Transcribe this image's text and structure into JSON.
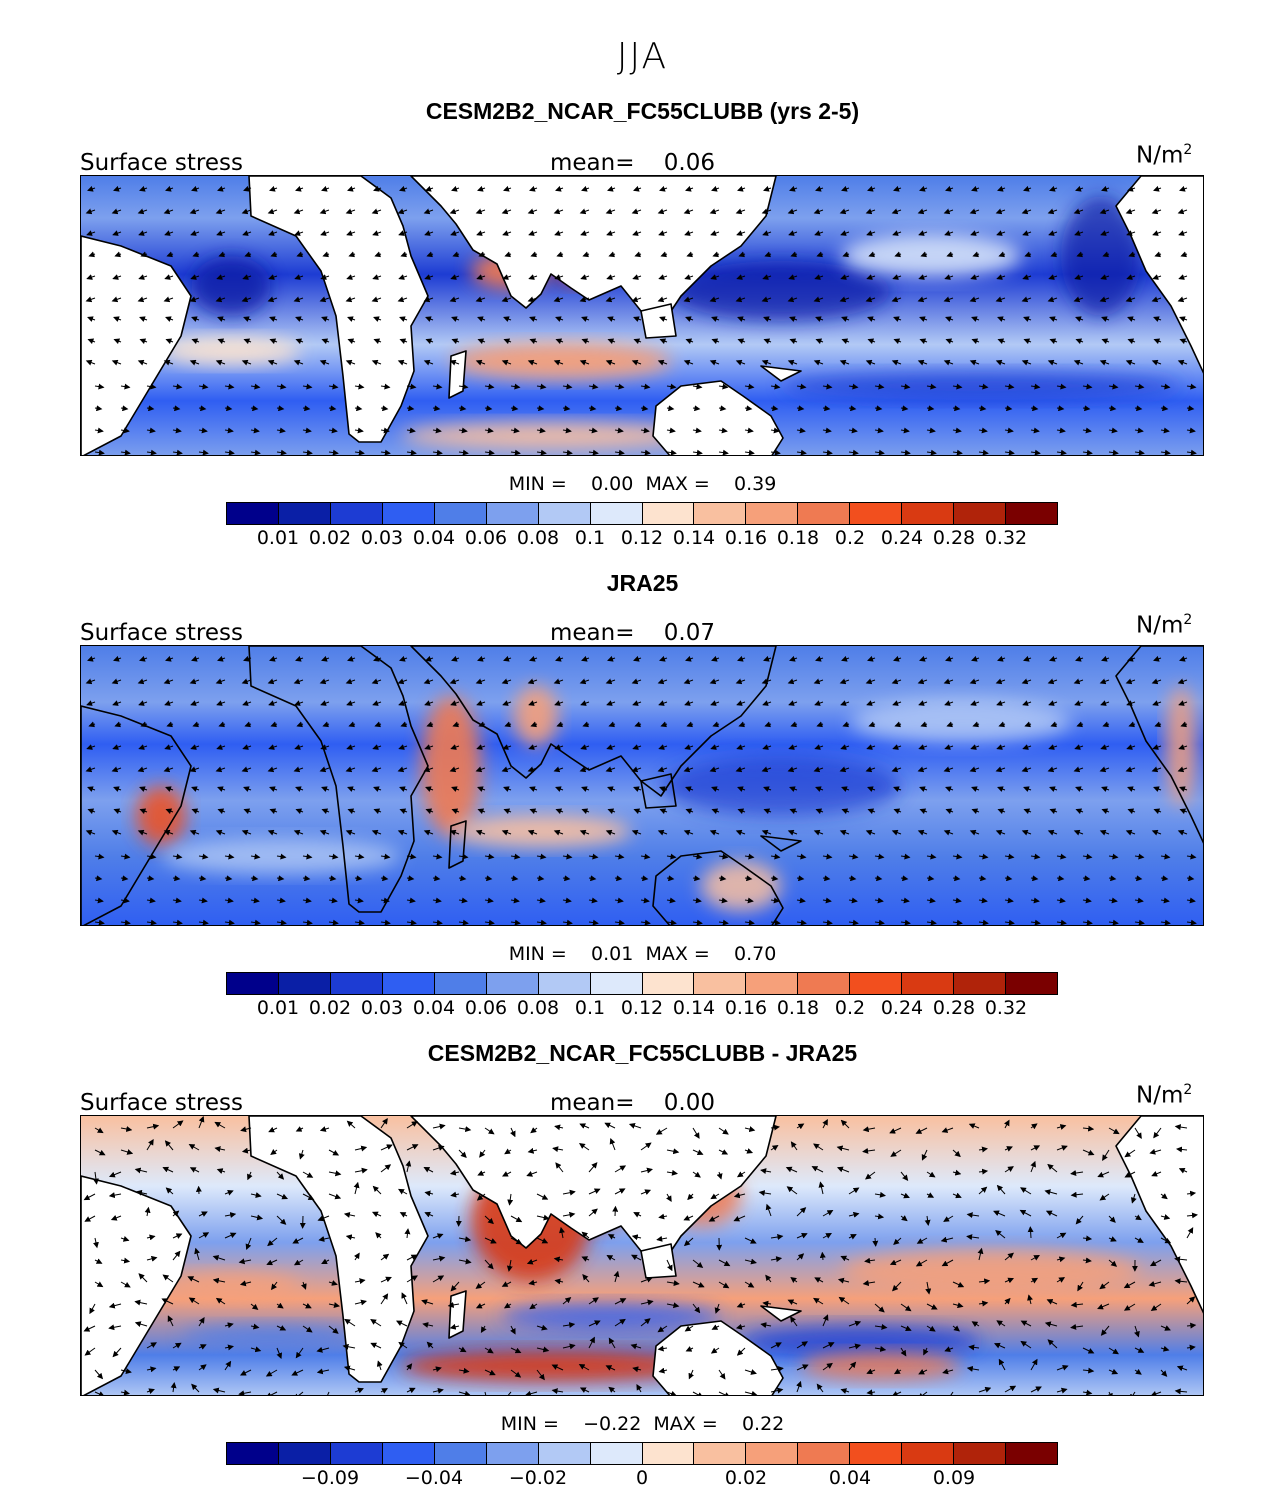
{
  "figure": {
    "season": "JJA"
  },
  "palette": [
    "#00008b",
    "#0a1fa6",
    "#1d3cd3",
    "#2f5ef2",
    "#4f7ee8",
    "#7da0ee",
    "#b2c9f5",
    "#dde9fb",
    "#fde3cf",
    "#f9c0a0",
    "#f6a07a",
    "#ef7a52",
    "#f24f1e",
    "#d93a12",
    "#b0230a",
    "#7a0000"
  ],
  "panels": [
    {
      "title": "CESM2B2_NCAR_FC55CLUBB (yrs 2-5)",
      "variable": "Surface stress",
      "mean_label": "mean=",
      "mean": "0.06",
      "units": "N/m",
      "units_exp": "2",
      "min_label": "MIN =",
      "min": "0.00",
      "max_label": "MAX =",
      "max": "0.39",
      "colorbar_labels": [
        "0.01",
        "0.02",
        "0.03",
        "0.04",
        "0.06",
        "0.08",
        "0.1",
        "0.12",
        "0.14",
        "0.16",
        "0.18",
        "0.2",
        "0.24",
        "0.28",
        "0.32"
      ],
      "style": "model"
    },
    {
      "title": "JRA25",
      "variable": "Surface stress",
      "mean_label": "mean=",
      "mean": "0.07",
      "units": "N/m",
      "units_exp": "2",
      "min_label": "MIN =",
      "min": "0.01",
      "max_label": "MAX =",
      "max": "0.70",
      "colorbar_labels": [
        "0.01",
        "0.02",
        "0.03",
        "0.04",
        "0.06",
        "0.08",
        "0.1",
        "0.12",
        "0.14",
        "0.16",
        "0.18",
        "0.2",
        "0.24",
        "0.28",
        "0.32"
      ],
      "style": "obs"
    },
    {
      "title": "CESM2B2_NCAR_FC55CLUBB - JRA25",
      "variable": "Surface stress",
      "mean_label": "mean=",
      "mean": "0.00",
      "units": "N/m",
      "units_exp": "2",
      "min_label": "MIN =",
      "min": "−0.22",
      "max_label": "MAX =",
      "max": "0.22",
      "colorbar_labels": [
        "−0.09",
        "−0.04",
        "−0.02",
        "0",
        "0.02",
        "0.04",
        "0.09"
      ],
      "style": "diff"
    }
  ],
  "chart_data": [
    {
      "type": "heatmap",
      "title": "CESM2B2_NCAR_FC55CLUBB (yrs 2-5)",
      "variable": "Surface stress",
      "units": "N/m^2",
      "mean": 0.06,
      "min": 0.0,
      "max": 0.39,
      "levels": [
        0.01,
        0.02,
        0.03,
        0.04,
        0.06,
        0.08,
        0.1,
        0.12,
        0.14,
        0.16,
        0.18,
        0.2,
        0.24,
        0.28,
        0.32
      ],
      "domain": "tropical belt, global longitudes, land masked",
      "overlay": "wind stress vectors"
    },
    {
      "type": "heatmap",
      "title": "JRA25",
      "variable": "Surface stress",
      "units": "N/m^2",
      "mean": 0.07,
      "min": 0.01,
      "max": 0.7,
      "levels": [
        0.01,
        0.02,
        0.03,
        0.04,
        0.06,
        0.08,
        0.1,
        0.12,
        0.14,
        0.16,
        0.18,
        0.2,
        0.24,
        0.28,
        0.32
      ],
      "domain": "tropical belt, global longitudes, land and ocean",
      "overlay": "wind stress vectors"
    },
    {
      "type": "heatmap",
      "title": "CESM2B2_NCAR_FC55CLUBB - JRA25",
      "variable": "Surface stress",
      "units": "N/m^2",
      "mean": 0.0,
      "min": -0.22,
      "max": 0.22,
      "levels": [
        -0.09,
        -0.04,
        -0.02,
        0,
        0.02,
        0.04,
        0.09
      ],
      "domain": "tropical belt, global longitudes, land masked",
      "overlay": "wind stress difference vectors"
    }
  ]
}
